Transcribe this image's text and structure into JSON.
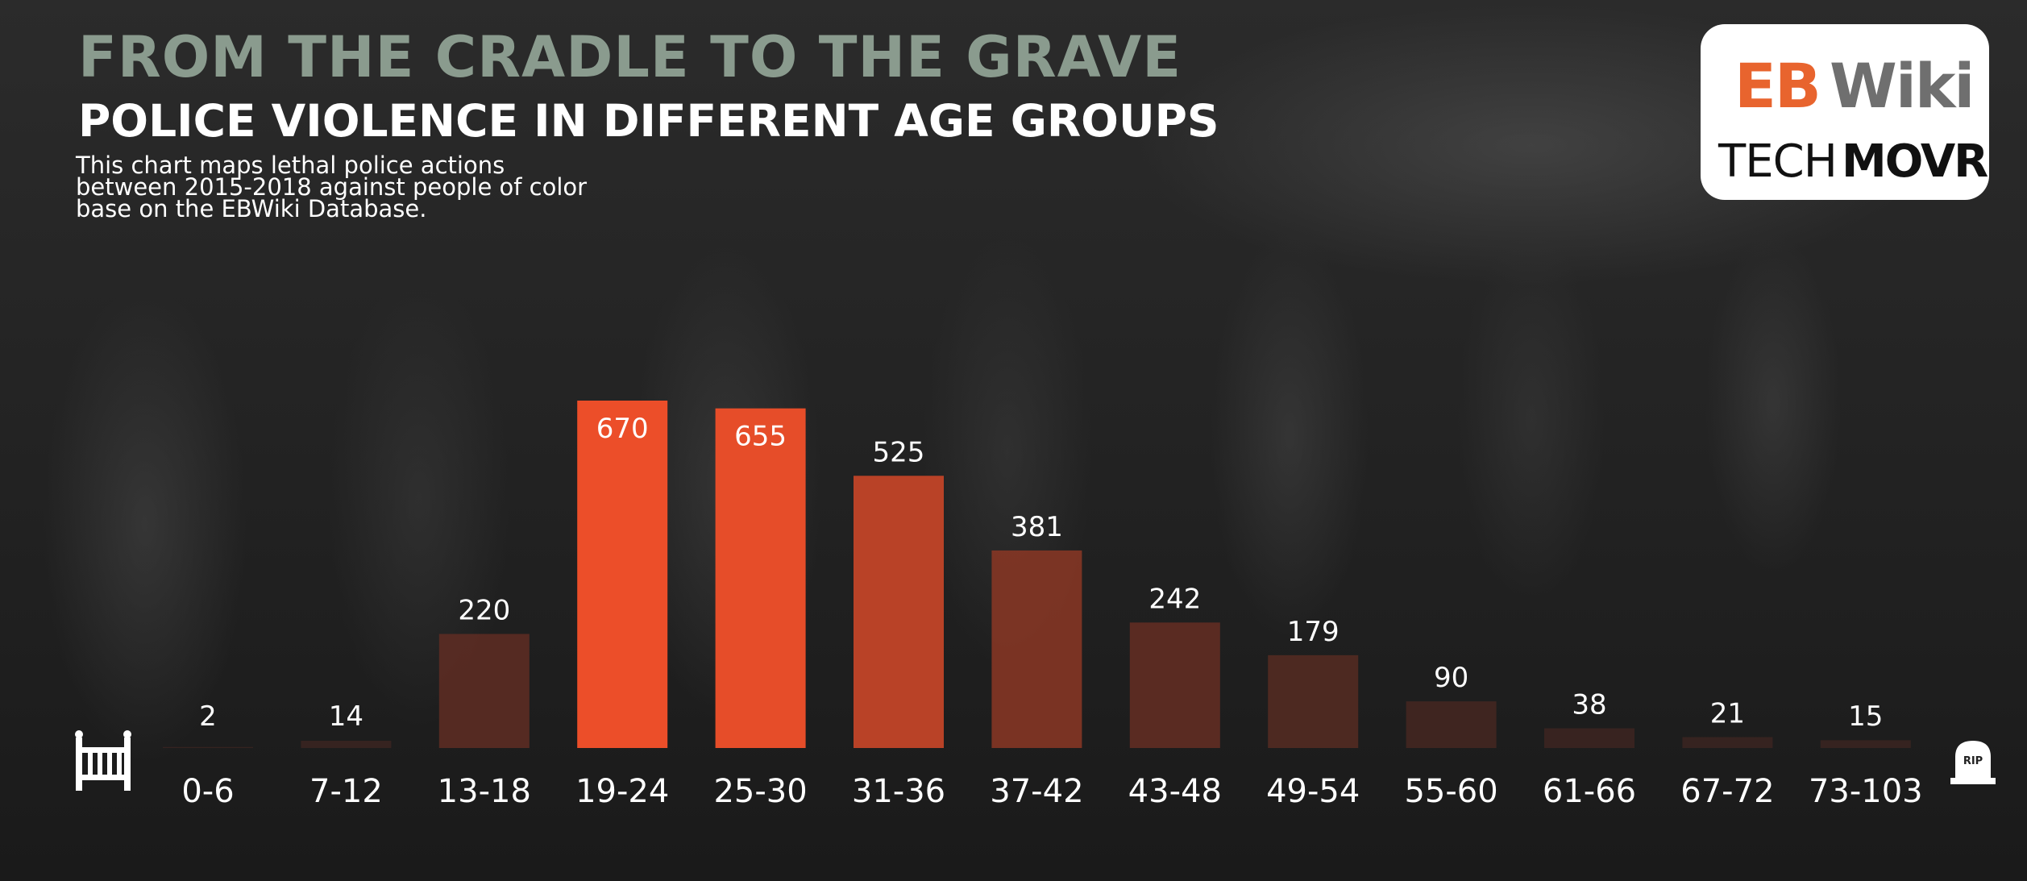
{
  "header": {
    "title": "FROM THE CRADLE TO THE GRAVE",
    "subtitle": "POLICE VIOLENCE IN DIFFERENT AGE GROUPS",
    "description": "This chart maps lethal police actions between 2015-2018 against people of color base on the EBWiki Database."
  },
  "logo": {
    "eb": "EB",
    "wiki": "Wiki",
    "tech": "TECH",
    "movr": "MOVR",
    "eb_color": "#e8642e"
  },
  "icons": {
    "left": "crib-icon",
    "right": "gravestone-icon",
    "grave_text": "RIP"
  },
  "colors": {
    "bar_max": "#f4512a",
    "bar_dark": "#3a2320",
    "label": "#ffffff"
  },
  "chart_data": {
    "type": "bar",
    "title": "",
    "xlabel": "",
    "ylabel": "",
    "categories": [
      "0-6",
      "7-12",
      "13-18",
      "19-24",
      "25-30",
      "31-36",
      "37-42",
      "43-48",
      "49-54",
      "55-60",
      "61-66",
      "67-72",
      "73-103"
    ],
    "values": [
      2,
      14,
      220,
      670,
      655,
      525,
      381,
      242,
      179,
      90,
      38,
      21,
      15
    ],
    "ylim": [
      0,
      670
    ],
    "grid": false,
    "legend": "none"
  }
}
